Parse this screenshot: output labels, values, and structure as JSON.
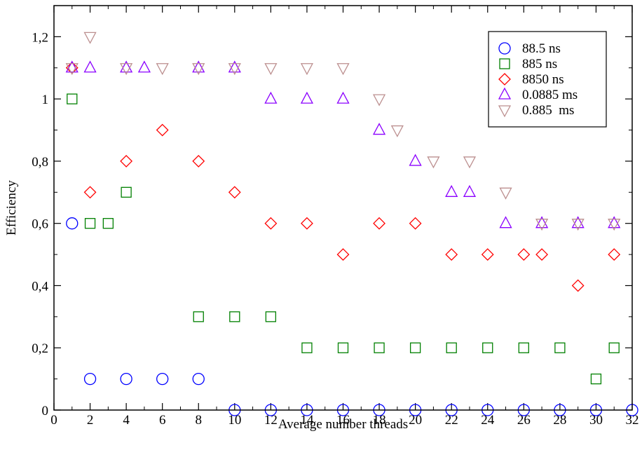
{
  "chart_data": {
    "type": "scatter",
    "xlabel": "Average number threads",
    "ylabel": "Efficiency",
    "xlim": [
      0,
      32
    ],
    "ylim": [
      0,
      1.3
    ],
    "x_major_ticks": [
      0,
      2,
      4,
      6,
      8,
      10,
      12,
      14,
      16,
      18,
      20,
      22,
      24,
      26,
      28,
      30,
      32
    ],
    "x_tick_labels": [
      "0",
      "2",
      "4",
      "6",
      "8",
      "10",
      "12",
      "14",
      "16",
      "18",
      "20",
      "22",
      "24",
      "26",
      "28",
      "30",
      "32"
    ],
    "y_major_ticks": [
      0,
      0.2,
      0.4,
      0.6,
      0.8,
      1,
      1.2
    ],
    "y_tick_labels": [
      "0",
      "0,2",
      "0,4",
      "0,6",
      "0,8",
      "1",
      "1,2"
    ],
    "grid": false,
    "legend_position": "top-right",
    "series": [
      {
        "name": "88.5 ns",
        "marker": "circle",
        "color": "#0000ff",
        "points": [
          [
            1,
            0.6
          ],
          [
            2,
            0.1
          ],
          [
            4,
            0.1
          ],
          [
            6,
            0.1
          ],
          [
            8,
            0.1
          ],
          [
            10,
            0
          ],
          [
            12,
            0
          ],
          [
            14,
            0
          ],
          [
            16,
            0
          ],
          [
            18,
            0
          ],
          [
            20,
            0
          ],
          [
            22,
            0
          ],
          [
            24,
            0
          ],
          [
            26,
            0
          ],
          [
            28,
            0
          ],
          [
            30,
            0
          ],
          [
            32,
            0
          ]
        ]
      },
      {
        "name": "885 ns",
        "marker": "square",
        "color": "#008000",
        "points": [
          [
            1,
            1.0
          ],
          [
            2,
            0.6
          ],
          [
            3,
            0.6
          ],
          [
            4,
            0.7
          ],
          [
            8,
            0.3
          ],
          [
            10,
            0.3
          ],
          [
            12,
            0.3
          ],
          [
            14,
            0.2
          ],
          [
            16,
            0.2
          ],
          [
            18,
            0.2
          ],
          [
            20,
            0.2
          ],
          [
            22,
            0.2
          ],
          [
            24,
            0.2
          ],
          [
            26,
            0.2
          ],
          [
            28,
            0.2
          ],
          [
            30,
            0.1
          ],
          [
            31,
            0.2
          ]
        ]
      },
      {
        "name": "8850 ns",
        "marker": "diamond",
        "color": "#ff0000",
        "points": [
          [
            1,
            1.1
          ],
          [
            2,
            0.7
          ],
          [
            4,
            0.8
          ],
          [
            6,
            0.9
          ],
          [
            8,
            0.8
          ],
          [
            10,
            0.7
          ],
          [
            12,
            0.6
          ],
          [
            14,
            0.6
          ],
          [
            16,
            0.5
          ],
          [
            18,
            0.6
          ],
          [
            20,
            0.6
          ],
          [
            22,
            0.5
          ],
          [
            24,
            0.5
          ],
          [
            26,
            0.5
          ],
          [
            27,
            0.5
          ],
          [
            29,
            0.4
          ],
          [
            31,
            0.5
          ]
        ]
      },
      {
        "name": "0.0885 ms",
        "marker": "triangle-up",
        "color": "#8b00ff",
        "points": [
          [
            1,
            1.1
          ],
          [
            2,
            1.1
          ],
          [
            4,
            1.1
          ],
          [
            5,
            1.1
          ],
          [
            8,
            1.1
          ],
          [
            10,
            1.1
          ],
          [
            12,
            1.0
          ],
          [
            14,
            1.0
          ],
          [
            16,
            1.0
          ],
          [
            18,
            0.9
          ],
          [
            20,
            0.8
          ],
          [
            22,
            0.7
          ],
          [
            23,
            0.7
          ],
          [
            25,
            0.6
          ],
          [
            27,
            0.6
          ],
          [
            29,
            0.6
          ],
          [
            31,
            0.6
          ]
        ]
      },
      {
        "name": "0.885  ms",
        "marker": "triangle-down",
        "color": "#bc8f8f",
        "points": [
          [
            1,
            1.1
          ],
          [
            2,
            1.2
          ],
          [
            4,
            1.1
          ],
          [
            6,
            1.1
          ],
          [
            8,
            1.1
          ],
          [
            10,
            1.1
          ],
          [
            12,
            1.1
          ],
          [
            14,
            1.1
          ],
          [
            16,
            1.1
          ],
          [
            18,
            1.0
          ],
          [
            19,
            0.9
          ],
          [
            21,
            0.8
          ],
          [
            23,
            0.8
          ],
          [
            25,
            0.7
          ],
          [
            27,
            0.6
          ],
          [
            29,
            0.6
          ],
          [
            31,
            0.6
          ]
        ]
      }
    ]
  }
}
